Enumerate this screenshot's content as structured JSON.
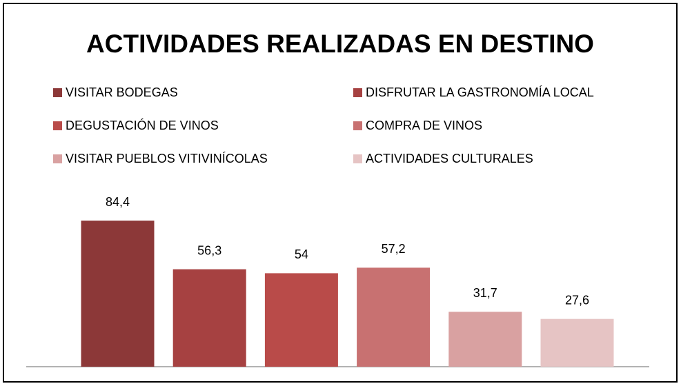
{
  "chart_data": {
    "type": "bar",
    "title": "ACTIVIDADES REALIZADAS EN DESTINO",
    "series": [
      {
        "name": "VISITAR BODEGAS",
        "color": "#8c3838",
        "values": [
          84.4
        ],
        "value_labels": [
          "84,4"
        ]
      },
      {
        "name": "DISFRUTAR LA GASTRONOMÍA LOCAL",
        "color": "#a64141",
        "values": [
          56.3
        ],
        "value_labels": [
          "56,3"
        ]
      },
      {
        "name": "DEGUSTACIÓN DE VINOS",
        "color": "#b94b49",
        "values": [
          54
        ],
        "value_labels": [
          "54"
        ]
      },
      {
        "name": "COMPRA DE VINOS",
        "color": "#c87171",
        "values": [
          57.2
        ],
        "value_labels": [
          "57,2"
        ]
      },
      {
        "name": "VISITAR PUEBLOS VITIVINÍCOLAS",
        "color": "#d9a1a1",
        "values": [
          31.7
        ],
        "value_labels": [
          "31,7"
        ]
      },
      {
        "name": "ACTIVIDADES CULTURALES",
        "color": "#e6c4c4",
        "values": [
          27.6
        ],
        "value_labels": [
          "27,6"
        ]
      }
    ],
    "ylim": [
      0,
      90
    ],
    "legend": "top"
  }
}
